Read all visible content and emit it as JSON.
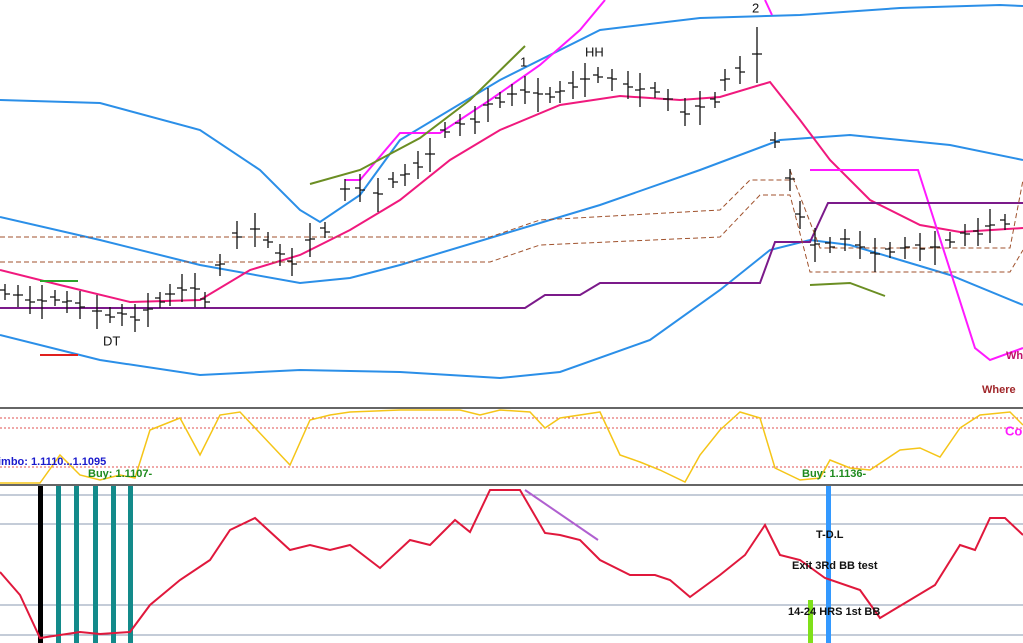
{
  "labels": {
    "dt": "DT",
    "wave1": "1",
    "hh": "HH",
    "wave2": "2",
    "wh": "Wh",
    "where": "Where",
    "co": "Co",
    "limbo": "imbo: 1.1110...1.1095",
    "buy1": "Buy: 1.1107-",
    "buy2": "Buy: 1.1136-",
    "tdl": "T-D.L",
    "exit": "Exit 3Rd BB test",
    "hrs": "14-24 HRS 1st BB"
  }
}
